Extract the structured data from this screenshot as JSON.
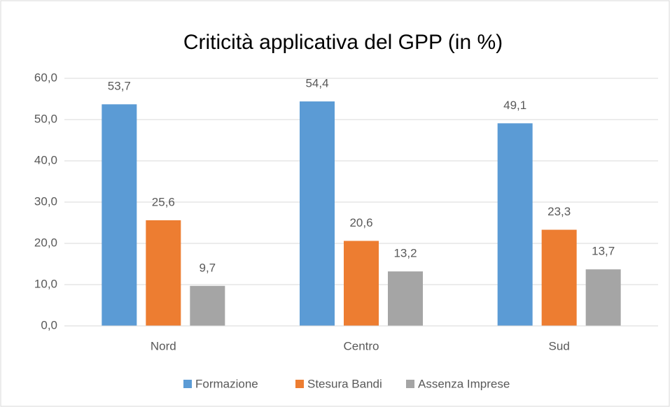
{
  "chart_data": {
    "type": "bar",
    "title": "Criticità applicativa del GPP (in %)",
    "categories": [
      "Nord",
      "Centro",
      "Sud"
    ],
    "series": [
      {
        "name": "Formazione",
        "color": "#5b9bd5",
        "values": [
          53.7,
          54.4,
          49.1
        ],
        "value_labels": [
          "53,7",
          "54,4",
          "49,1"
        ]
      },
      {
        "name": "Stesura Bandi",
        "color": "#ed7d31",
        "values": [
          25.6,
          20.6,
          23.3
        ],
        "value_labels": [
          "25,6",
          "20,6",
          "23,3"
        ]
      },
      {
        "name": "Assenza Imprese",
        "color": "#a5a5a5",
        "values": [
          9.7,
          13.2,
          13.7
        ],
        "value_labels": [
          "9,7",
          "13,2",
          "13,7"
        ]
      }
    ],
    "ylim": [
      0,
      60
    ],
    "yticks": [
      {
        "value": 0,
        "label": "0,0"
      },
      {
        "value": 10,
        "label": "10,0"
      },
      {
        "value": 20,
        "label": "20,0"
      },
      {
        "value": 30,
        "label": "30,0"
      },
      {
        "value": 40,
        "label": "40,0"
      },
      {
        "value": 50,
        "label": "50,0"
      },
      {
        "value": 60,
        "label": "60,0"
      }
    ],
    "grid": true,
    "legend": "bottom"
  }
}
